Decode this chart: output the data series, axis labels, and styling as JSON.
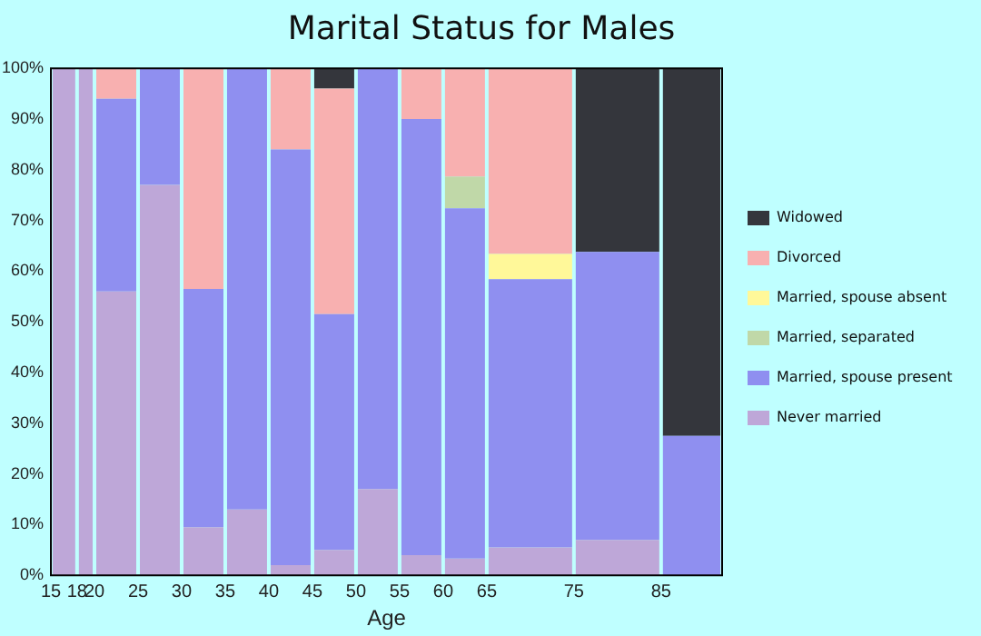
{
  "chart_data": {
    "type": "bar",
    "stacked": true,
    "title": "Marital Status for Males",
    "xlabel": "Age",
    "x": [
      16.5,
      19,
      22.5,
      27.5,
      32.5,
      37.5,
      42.5,
      47.5,
      52.5,
      57.5,
      62.5,
      70,
      80,
      88.5
    ],
    "xlim": [
      15,
      92
    ],
    "xticks": [
      15,
      18,
      20,
      25,
      30,
      35,
      40,
      45,
      50,
      55,
      60,
      65,
      75,
      85
    ],
    "ylim": [
      0,
      100
    ],
    "yticks": [
      {
        "value": 0,
        "label": "0%"
      },
      {
        "value": 10,
        "label": "10%"
      },
      {
        "value": 20,
        "label": "20%"
      },
      {
        "value": 30,
        "label": "30%"
      },
      {
        "value": 40,
        "label": "40%"
      },
      {
        "value": 50,
        "label": "50%"
      },
      {
        "value": 60,
        "label": "60%"
      },
      {
        "value": 70,
        "label": "70%"
      },
      {
        "value": 80,
        "label": "80%"
      },
      {
        "value": 90,
        "label": "90%"
      },
      {
        "value": 100,
        "label": "100%"
      }
    ],
    "grid": false,
    "legend": "right",
    "series": [
      {
        "name": "Never married",
        "color": "#bea7d8",
        "values": [
          100,
          100,
          56,
          77,
          9.5,
          13,
          2,
          5,
          17,
          4,
          3.3,
          5.5,
          7,
          null
        ]
      },
      {
        "name": "Married, spouse present",
        "color": "#8f8ff0",
        "values": [
          null,
          null,
          38,
          23,
          47,
          87,
          82,
          46.5,
          83,
          86,
          69.1,
          52.9,
          56.8,
          27.5
        ]
      },
      {
        "name": "Married, separated",
        "color": "#c0d8a8",
        "values": [
          null,
          null,
          null,
          null,
          null,
          null,
          null,
          null,
          null,
          null,
          6.2,
          null,
          null,
          null
        ]
      },
      {
        "name": "Married, spouse absent",
        "color": "#fff899",
        "values": [
          null,
          null,
          null,
          null,
          null,
          null,
          null,
          null,
          null,
          null,
          null,
          5,
          null,
          null
        ]
      },
      {
        "name": "Divorced",
        "color": "#f8b0b0",
        "values": [
          null,
          null,
          6,
          null,
          43.5,
          null,
          16,
          44.5,
          null,
          10,
          21.4,
          36.6,
          null,
          null
        ]
      },
      {
        "name": "Widowed",
        "color": "#34363c",
        "values": [
          null,
          null,
          null,
          null,
          null,
          null,
          null,
          4,
          null,
          null,
          null,
          null,
          36.2,
          72.5
        ]
      }
    ]
  }
}
